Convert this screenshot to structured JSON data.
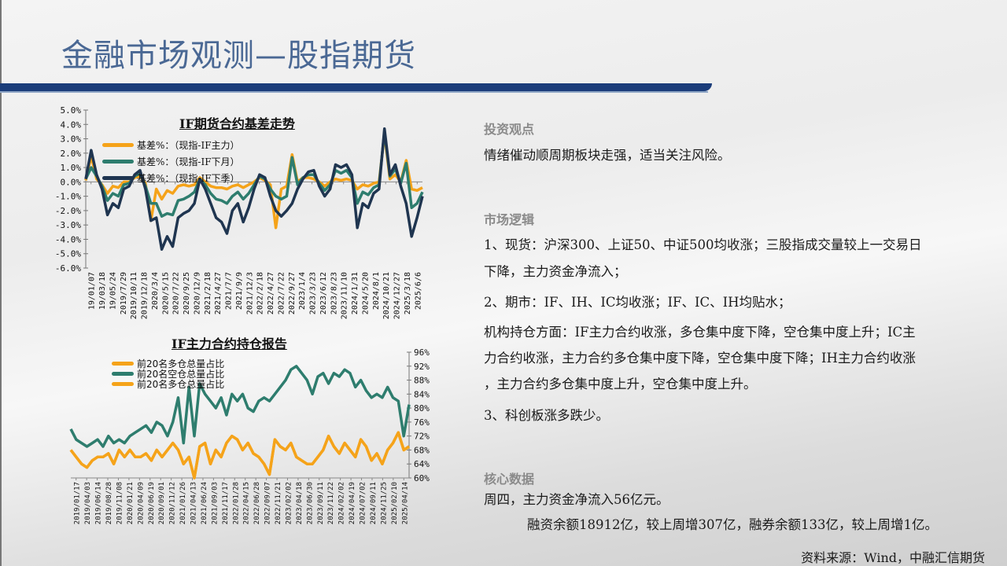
{
  "header": {
    "title": "金融市场观测—股指期货"
  },
  "colors": {
    "orange": "#f5a31a",
    "teal": "#2e7d6e",
    "navy": "#1f3550",
    "title": "#4a6894",
    "bar": "#1b3d7a"
  },
  "right": {
    "view_heading": "投资观点",
    "view_text": "情绪催动顺周期板块走强，适当关注风险。",
    "logic_heading": "市场逻辑",
    "logic_1a": "1、现货：沪深300、上证50、中证500均收涨；三股指成交量较上一交易日",
    "logic_1b": "下降，主力资金净流入；",
    "logic_2": "2、期市：IF、IH、IC均收涨；IF、IC、IH均贴水；",
    "logic_inst_a": "机构持仓方面：IF主力合约收涨，多仓集中度下降，空仓集中度上升；IC主",
    "logic_inst_b": "力合约收涨，主力合约多仓集中度下降，空仓集中度下降；IH主力合约收涨",
    "logic_inst_c": "，主力合约多仓集中度上升，空仓集中度上升。",
    "logic_3": "3、科创板涨多跌少。",
    "core_heading": "核心数据",
    "core_1": "周四，主力资金净流入56亿元。",
    "core_2": "融资余额18912亿，较上周增307亿，融券余额133亿，较上周增1亿。",
    "source": "资料来源：Wind，中融汇信期货"
  },
  "chart_data": [
    {
      "type": "line",
      "title": "IF期货合约基差走势",
      "ylim": [
        -6,
        5
      ],
      "yticks": [
        "5.0%",
        "4.0%",
        "3.0%",
        "2.0%",
        "1.0%",
        "0.0%",
        "-1.0%",
        "-2.0%",
        "-3.0%",
        "-4.0%",
        "-5.0%",
        "-6.0%"
      ],
      "ytick_values": [
        5,
        4,
        3,
        2,
        1,
        0,
        -1,
        -2,
        -3,
        -4,
        -5,
        -6
      ],
      "xticks": [
        "19/01/07",
        "19/03/18",
        "19/05/24",
        "2019/7/29",
        "2019/10/11",
        "2019/12/18",
        "2020/3/4",
        "2020/5/15",
        "2020/7/22",
        "2020/9/25",
        "2020/12/9",
        "2021/2/18",
        "2021/4/27",
        "2021/7/7",
        "2021/9/9",
        "2021/12/3",
        "2022/2/18",
        "2022/4/27",
        "2022/7/22",
        "2022/9/27",
        "2023/1/4",
        "2023/3/23",
        "2023/6/12",
        "2023/8/23",
        "2023/11/10",
        "2024/1/31",
        "2024/5/20",
        "2024/8/1",
        "2024/10/21",
        "2024/12/27",
        "2025/3/18",
        "2025/6/6"
      ],
      "legend": "top-left",
      "series": [
        {
          "name": "基差%：（现指-IF主力）",
          "color": "#f5a31a",
          "values": [
            0.1,
            1.8,
            0.2,
            -0.2,
            -0.8,
            -0.3,
            -0.4,
            0.0,
            0.0,
            0.3,
            0.4,
            -0.1,
            -2.7,
            -0.5,
            -1.2,
            -0.6,
            -0.8,
            -0.3,
            -0.2,
            -0.3,
            -0.2,
            0.3,
            0.0,
            -0.3,
            -0.4,
            -0.4,
            -0.5,
            -0.3,
            -0.2,
            -0.4,
            -0.2,
            0.0,
            0.3,
            0.1,
            -0.2,
            -3.2,
            -0.5,
            -0.3,
            1.9,
            0.0,
            0.3,
            0.3,
            0.2,
            0.0,
            -0.3,
            0.0,
            0.2,
            0.1,
            0.2,
            0.1,
            -0.5,
            -0.2,
            -0.3,
            -0.1,
            0.0,
            3.3,
            0.2,
            0.5,
            0.0,
            1.5,
            -0.5,
            -0.6,
            -0.4
          ]
        },
        {
          "name": "基差%：（现指-IF下月）",
          "color": "#2e7d6e",
          "values": [
            0.2,
            1.0,
            0.4,
            -0.3,
            -1.3,
            -0.8,
            -1.0,
            -0.2,
            -0.1,
            0.4,
            0.6,
            -0.3,
            -1.5,
            -1.5,
            -2.4,
            -2.2,
            -2.3,
            -1.3,
            -1.2,
            -1.0,
            -0.7,
            0.2,
            -0.2,
            -0.8,
            -1.2,
            -1.3,
            -1.5,
            -1.0,
            -0.7,
            -1.2,
            -0.8,
            -0.2,
            0.4,
            0.2,
            -0.5,
            -1.0,
            -1.2,
            -1.0,
            1.7,
            -0.2,
            0.3,
            0.5,
            0.5,
            -0.1,
            -0.6,
            -0.2,
            0.8,
            0.6,
            0.8,
            0.3,
            -1.5,
            -0.7,
            -0.9,
            -0.4,
            -0.2,
            3.5,
            0.4,
            0.9,
            -0.1,
            1.3,
            -1.8,
            -1.5,
            -0.7
          ]
        },
        {
          "name": "基差%：（现指-IF下季）",
          "color": "#1f3550",
          "values": [
            0.2,
            2.2,
            0.5,
            -0.5,
            -2.3,
            -1.5,
            -1.8,
            -0.5,
            -0.3,
            0.5,
            0.8,
            -0.5,
            -2.7,
            -2.5,
            -4.7,
            -3.8,
            -4.5,
            -2.5,
            -2.2,
            -2.0,
            -1.5,
            0.2,
            -0.5,
            -1.5,
            -2.5,
            -2.8,
            -3.6,
            -2.0,
            -1.5,
            -2.8,
            -1.8,
            -0.5,
            0.5,
            0.3,
            -1.0,
            -2.0,
            -2.4,
            -2.0,
            -1.5,
            -0.5,
            0.2,
            0.7,
            0.8,
            -0.3,
            -1.0,
            -0.5,
            1.2,
            1.0,
            1.2,
            0.5,
            -3.2,
            -1.5,
            -1.8,
            -0.8,
            -0.5,
            3.7,
            0.5,
            1.2,
            -0.3,
            -1.5,
            -3.8,
            -2.5,
            -1.0
          ]
        }
      ]
    },
    {
      "type": "line",
      "title": "IF主力合约持仓报告",
      "ylim": [
        60,
        96
      ],
      "yticks": [
        "96%",
        "92%",
        "88%",
        "84%",
        "80%",
        "76%",
        "72%",
        "68%",
        "64%",
        "60%"
      ],
      "ytick_values": [
        96,
        92,
        88,
        84,
        80,
        76,
        72,
        68,
        64,
        60
      ],
      "y_axis_side": "right",
      "xticks": [
        "2019/01/17",
        "2019/04/03",
        "2019/06/14",
        "2019/08/28",
        "2019/11/08",
        "2020/01/21",
        "2020/04/09",
        "2020/06/19",
        "2020/09/01",
        "2020/11/12",
        "2021/01/26",
        "2021/04/13",
        "2021/06/24",
        "2021/09/03",
        "2021/11/17",
        "2022/01/28",
        "2022/04/15",
        "2022/06/28",
        "2022/09/07",
        "2022/11/21",
        "2023/02/02",
        "2023/04/18",
        "2023/06/30",
        "2023/09/11",
        "2023/11/22",
        "2024/02/02",
        "2024/04/19",
        "2024/07/02",
        "2024/09/11",
        "2024/11/25",
        "2025/02/10",
        "2025/04/14"
      ],
      "legend": "top-left",
      "series": [
        {
          "name": "前20名多仓总量占比",
          "color": "#f5a31a",
          "values": [
            68,
            66,
            64,
            63,
            65,
            66,
            66,
            67,
            64,
            68,
            66,
            68,
            66,
            66,
            67,
            65,
            68,
            66,
            68,
            70,
            68,
            64,
            66,
            60,
            69,
            70,
            64,
            68,
            66,
            70,
            72,
            71,
            68,
            70,
            67,
            66,
            64,
            61,
            71,
            69,
            68,
            70,
            66,
            65,
            64,
            64,
            66,
            68,
            72,
            69,
            67,
            70,
            68,
            66,
            71,
            69,
            65,
            67,
            64,
            68,
            70,
            73,
            68,
            69
          ]
        },
        {
          "name": "前20名空仓总量占比",
          "color": "#2e7d6e",
          "values": [
            74,
            71,
            70,
            69,
            70,
            71,
            69,
            72,
            70,
            71,
            70,
            72,
            73,
            74,
            75,
            73,
            76,
            75,
            72,
            76,
            83,
            70,
            86,
            72,
            87,
            84,
            82,
            80,
            83,
            78,
            84,
            82,
            84,
            80,
            79,
            82,
            83,
            82,
            84,
            86,
            88,
            91,
            92,
            90,
            88,
            84,
            89,
            90,
            87,
            90,
            89,
            91,
            90,
            86,
            88,
            85,
            83,
            84,
            83,
            86,
            83,
            82,
            72,
            81
          ]
        },
        {
          "name": "前20名多仓总量占比",
          "color": "#f5a31a",
          "values": [
            68,
            66,
            64,
            63,
            65,
            66,
            66,
            67,
            64,
            68,
            66,
            68,
            66,
            66,
            67,
            65,
            68,
            66,
            68,
            70,
            68,
            64,
            66,
            60,
            69,
            70,
            64,
            68,
            66,
            70,
            72,
            71,
            68,
            70,
            67,
            66,
            64,
            61,
            71,
            69,
            68,
            70,
            66,
            65,
            64,
            64,
            66,
            68,
            72,
            69,
            67,
            70,
            68,
            66,
            71,
            69,
            65,
            67,
            64,
            68,
            70,
            73,
            68,
            69
          ]
        }
      ]
    }
  ]
}
